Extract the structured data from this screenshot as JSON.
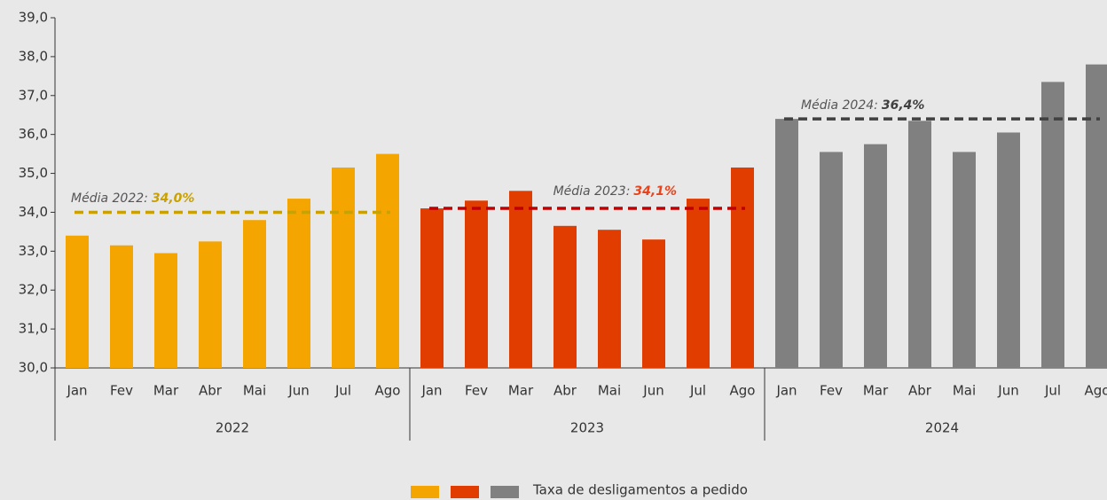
{
  "chart_data": {
    "type": "bar",
    "ylim": [
      30,
      39
    ],
    "yticks": [
      {
        "value": 30,
        "label": "30,0"
      },
      {
        "value": 31,
        "label": "31,0"
      },
      {
        "value": 32,
        "label": "32,0"
      },
      {
        "value": 33,
        "label": "33,0"
      },
      {
        "value": 34,
        "label": "34,0"
      },
      {
        "value": 35,
        "label": "35,0"
      },
      {
        "value": 36,
        "label": "36,0"
      },
      {
        "value": 37,
        "label": "37,0"
      },
      {
        "value": 38,
        "label": "38,0"
      },
      {
        "value": 39,
        "label": "39,0"
      }
    ],
    "legend": {
      "label": "Taxa de desligamentos a pedido",
      "position": "bottom"
    },
    "groups": [
      {
        "name": "2022",
        "color": "#f5a500",
        "average_color": "#c9a100",
        "categories": [
          "Jan",
          "Fev",
          "Mar",
          "Abr",
          "Mai",
          "Jun",
          "Jul",
          "Ago"
        ],
        "values": [
          33.4,
          33.15,
          32.95,
          33.25,
          33.8,
          34.35,
          35.15,
          35.5
        ],
        "average_label": "Média 2022:",
        "average": 34.0,
        "average_value_label": "34,0%"
      },
      {
        "name": "2023",
        "color": "#e23d00",
        "average_color": "#c00000",
        "average_text_color": "#e8431a",
        "categories": [
          "Jan",
          "Fev",
          "Mar",
          "Abr",
          "Mai",
          "Jun",
          "Jul",
          "Ago"
        ],
        "values": [
          34.1,
          34.3,
          34.55,
          33.65,
          33.55,
          33.3,
          34.35,
          35.15
        ],
        "average_label": "Média 2023:",
        "average": 34.1,
        "average_value_label": "34,1%"
      },
      {
        "name": "2024",
        "color": "#808080",
        "average_color": "#404040",
        "categories": [
          "Jan",
          "Fev",
          "Mar",
          "Abr",
          "Mai",
          "Jun",
          "Jul",
          "Ago"
        ],
        "values": [
          36.4,
          35.55,
          35.75,
          36.35,
          35.55,
          36.05,
          37.35,
          37.8
        ],
        "average_label": "Média 2024:",
        "average": 36.4,
        "average_value_label": "36,4%"
      }
    ]
  }
}
